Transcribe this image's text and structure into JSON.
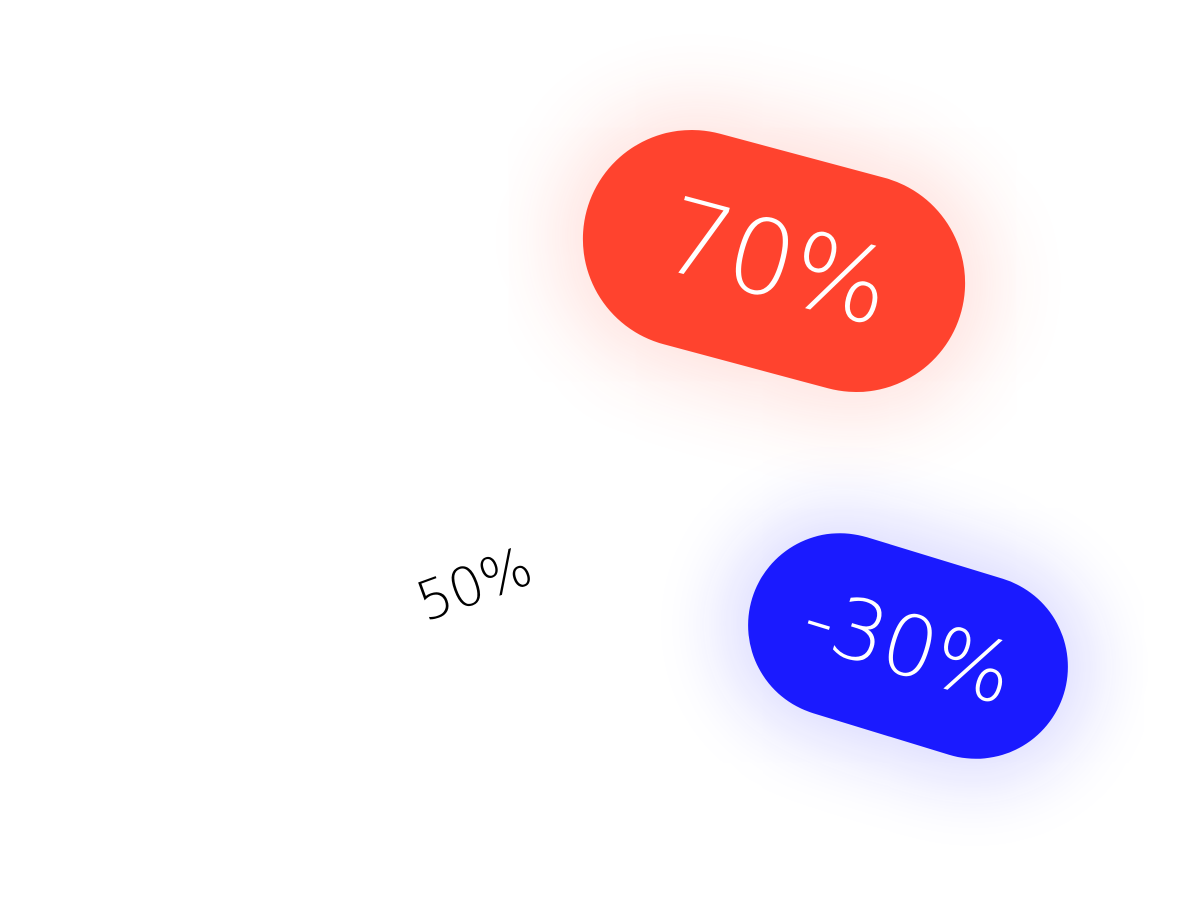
{
  "badges": {
    "red": {
      "label": "70%",
      "color": "#ff432e"
    },
    "blue": {
      "label": "-30%",
      "color": "#1a1aff"
    }
  },
  "plain_label": {
    "text": "50%",
    "color": "#000000"
  },
  "background_color": "#ffffff"
}
